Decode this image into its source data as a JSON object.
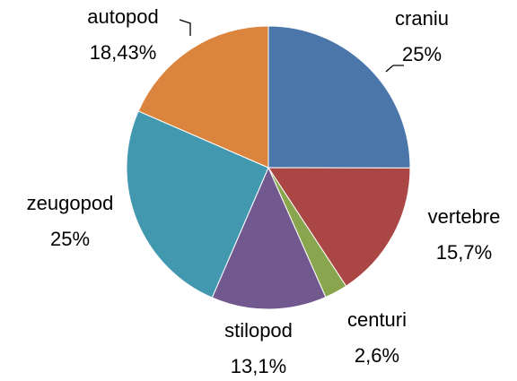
{
  "chart_data": {
    "type": "pie",
    "categories": [
      "craniu",
      "vertebre",
      "centuri",
      "stilopod",
      "zeugopod",
      "autopod"
    ],
    "values": [
      25,
      15.7,
      2.6,
      13.1,
      25,
      18.43
    ],
    "value_labels": [
      "25%",
      "15,7%",
      "2,6%",
      "13,1%",
      "25%",
      "18,43%"
    ],
    "colors": [
      "#4a76aa",
      "#aa4643",
      "#89a54e",
      "#71588f",
      "#4198af",
      "#db843d"
    ]
  }
}
